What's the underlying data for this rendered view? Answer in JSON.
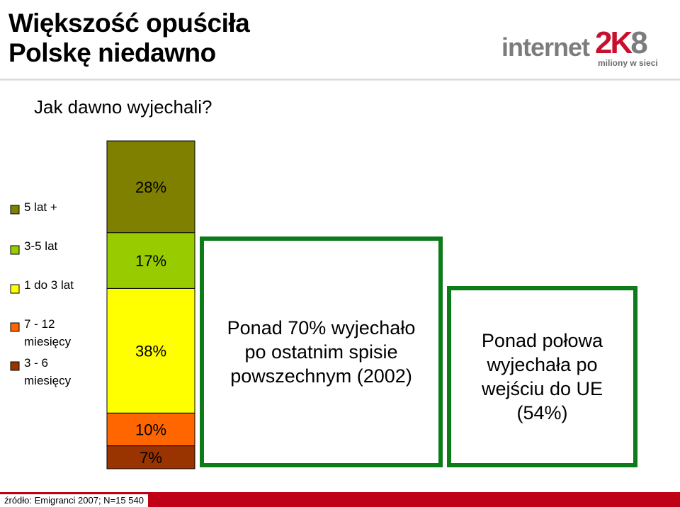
{
  "header": {
    "title_line1": "Większość opuściła",
    "title_line2": "Polskę niedawno",
    "logo": {
      "word": "internet",
      "number": "2K",
      "number_suffix": "8",
      "tagline": "miliony w sieci"
    }
  },
  "question": "Jak dawno wyjechali?",
  "chart_data": {
    "type": "bar",
    "stacked": true,
    "categories": [
      ""
    ],
    "series": [
      {
        "name": "3 - 6 miesięcy",
        "values": [
          7
        ],
        "label": "7%",
        "color": "#993300"
      },
      {
        "name": "7 - 12 miesięcy",
        "values": [
          10
        ],
        "label": "10%",
        "color": "#ff6600"
      },
      {
        "name": "1 do 3 lat",
        "values": [
          38
        ],
        "label": "38%",
        "color": "#ffff00"
      },
      {
        "name": "3-5 lat",
        "values": [
          17
        ],
        "label": "17%",
        "color": "#99cc00"
      },
      {
        "name": "5 lat +",
        "values": [
          28
        ],
        "label": "28%",
        "color": "#808000"
      }
    ],
    "legend": {
      "placement": "left",
      "entries": [
        "5 lat +",
        "3-5 lat",
        "1 do 3 lat",
        "7 - 12 miesięcy",
        "3 - 6 miesięcy"
      ],
      "entry_lines": [
        [
          "5 lat +"
        ],
        [
          "3-5 lat"
        ],
        [
          "1 do 3 lat"
        ],
        [
          "7 - 12",
          "miesięcy"
        ],
        [
          "3 - 6",
          "miesięcy"
        ]
      ]
    },
    "ylim": [
      0,
      100
    ]
  },
  "boxes": [
    {
      "lines": [
        "Ponad 70% wyjechało",
        "po ostatnim spisie",
        "powszechnym (2002)"
      ]
    },
    {
      "lines": [
        "Ponad połowa",
        "wyjechała po",
        "wejściu do UE",
        "(54%)"
      ]
    }
  ],
  "footer": {
    "source": "źródło: Emigranci 2007; N=15 540"
  },
  "colors": {
    "box_border": "#0e7b1a",
    "footer_bar": "#c00014",
    "logo_gray": "#7b7c7e",
    "logo_red": "#c8102e"
  }
}
